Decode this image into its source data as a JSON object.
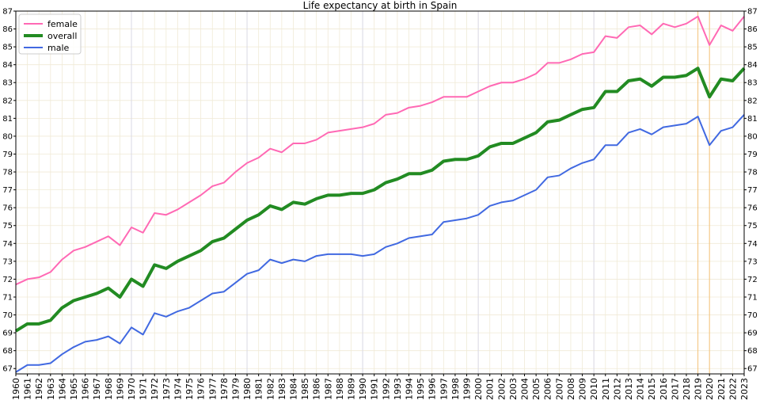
{
  "chart_data": {
    "type": "line",
    "title": "Life expectancy at birth in Spain",
    "xlabel": "",
    "ylabel": "",
    "xlim": [
      1960,
      2023
    ],
    "ylim": [
      66.7,
      87
    ],
    "y_ticks": [
      67,
      68,
      69,
      70,
      71,
      72,
      73,
      74,
      75,
      76,
      77,
      78,
      79,
      80,
      81,
      82,
      83,
      84,
      85,
      86,
      87
    ],
    "y_axis_sides": [
      "left",
      "right"
    ],
    "grid": true,
    "legend_position": "top-left",
    "highlight_years": [
      1970,
      1980,
      1990,
      2000,
      2010,
      2019,
      2020
    ],
    "x": [
      1960,
      1961,
      1962,
      1963,
      1964,
      1965,
      1966,
      1967,
      1968,
      1969,
      1970,
      1971,
      1972,
      1973,
      1974,
      1975,
      1976,
      1977,
      1978,
      1979,
      1980,
      1981,
      1982,
      1983,
      1984,
      1985,
      1986,
      1987,
      1988,
      1989,
      1990,
      1991,
      1992,
      1993,
      1994,
      1995,
      1996,
      1997,
      1998,
      1999,
      2000,
      2001,
      2002,
      2003,
      2004,
      2005,
      2006,
      2007,
      2008,
      2009,
      2010,
      2011,
      2012,
      2013,
      2014,
      2015,
      2016,
      2017,
      2018,
      2019,
      2020,
      2021,
      2022,
      2023
    ],
    "series": [
      {
        "name": "female",
        "color": "#ff69b4",
        "width": 2,
        "values": [
          71.7,
          72.0,
          72.1,
          72.4,
          73.1,
          73.6,
          73.8,
          74.1,
          74.4,
          73.9,
          74.9,
          74.6,
          75.7,
          75.6,
          75.9,
          76.3,
          76.7,
          77.2,
          77.4,
          78.0,
          78.5,
          78.8,
          79.3,
          79.1,
          79.6,
          79.6,
          79.8,
          80.2,
          80.3,
          80.4,
          80.5,
          80.7,
          81.2,
          81.3,
          81.6,
          81.7,
          81.9,
          82.2,
          82.2,
          82.2,
          82.5,
          82.8,
          83.0,
          83.0,
          83.2,
          83.5,
          84.1,
          84.1,
          84.3,
          84.6,
          84.7,
          85.6,
          85.5,
          86.1,
          86.2,
          85.7,
          86.3,
          86.1,
          86.3,
          86.7,
          85.1,
          86.2,
          85.9,
          86.7
        ]
      },
      {
        "name": "overall",
        "color": "#228b22",
        "width": 4,
        "values": [
          69.1,
          69.5,
          69.5,
          69.7,
          70.4,
          70.8,
          71.0,
          71.2,
          71.5,
          71.0,
          72.0,
          71.6,
          72.8,
          72.6,
          73.0,
          73.3,
          73.6,
          74.1,
          74.3,
          74.8,
          75.3,
          75.6,
          76.1,
          75.9,
          76.3,
          76.2,
          76.5,
          76.7,
          76.7,
          76.8,
          76.8,
          77.0,
          77.4,
          77.6,
          77.9,
          77.9,
          78.1,
          78.6,
          78.7,
          78.7,
          78.9,
          79.4,
          79.6,
          79.6,
          79.9,
          80.2,
          80.8,
          80.9,
          81.2,
          81.5,
          81.6,
          82.5,
          82.5,
          83.1,
          83.2,
          82.8,
          83.3,
          83.3,
          83.4,
          83.8,
          82.2,
          83.2,
          83.1,
          83.8
        ]
      },
      {
        "name": "male",
        "color": "#4169e1",
        "width": 2,
        "values": [
          66.8,
          67.2,
          67.2,
          67.3,
          67.8,
          68.2,
          68.5,
          68.6,
          68.8,
          68.4,
          69.3,
          68.9,
          70.1,
          69.9,
          70.2,
          70.4,
          70.8,
          71.2,
          71.3,
          71.8,
          72.3,
          72.5,
          73.1,
          72.9,
          73.1,
          73.0,
          73.3,
          73.4,
          73.4,
          73.4,
          73.3,
          73.4,
          73.8,
          74.0,
          74.3,
          74.4,
          74.5,
          75.2,
          75.3,
          75.4,
          75.6,
          76.1,
          76.3,
          76.4,
          76.7,
          77.0,
          77.7,
          77.8,
          78.2,
          78.5,
          78.7,
          79.5,
          79.5,
          80.2,
          80.4,
          80.1,
          80.5,
          80.6,
          80.7,
          81.1,
          79.5,
          80.3,
          80.5,
          81.2
        ]
      }
    ]
  }
}
